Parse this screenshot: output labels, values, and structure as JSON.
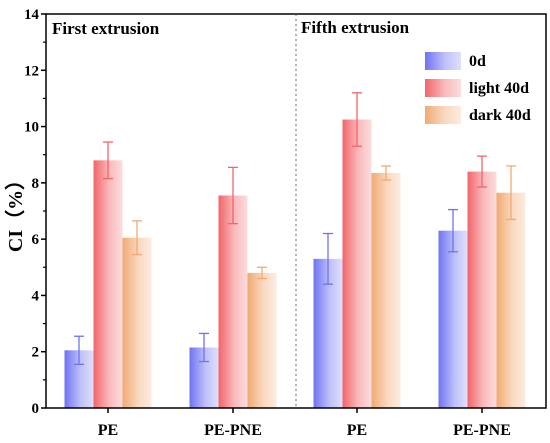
{
  "chart_data": {
    "type": "bar",
    "ylabel": "CI（%）",
    "ylim": [
      0,
      14
    ],
    "yticks": [
      "0",
      "2",
      "4",
      "6",
      "8",
      "10",
      "12",
      "14"
    ],
    "categories": [
      "PE",
      "PE-PNE",
      "PE",
      "PE-PNE"
    ],
    "panels": [
      "First extrusion",
      "Fifth extrusion"
    ],
    "series": [
      {
        "name": "0d",
        "color": "#6f73f2",
        "values": [
          2.05,
          2.15,
          5.3,
          6.3
        ],
        "errors": [
          0.5,
          0.5,
          0.9,
          0.75
        ]
      },
      {
        "name": "light 40d",
        "color": "#f2656a",
        "values": [
          8.8,
          7.55,
          10.25,
          8.4
        ],
        "errors": [
          0.65,
          1.0,
          0.95,
          0.55
        ]
      },
      {
        "name": "dark 40d",
        "color": "#f2aa72",
        "values": [
          6.05,
          4.8,
          8.35,
          7.65
        ],
        "errors": [
          0.6,
          0.2,
          0.25,
          0.95
        ]
      }
    ],
    "legend_position": "top-right",
    "grid": false
  }
}
